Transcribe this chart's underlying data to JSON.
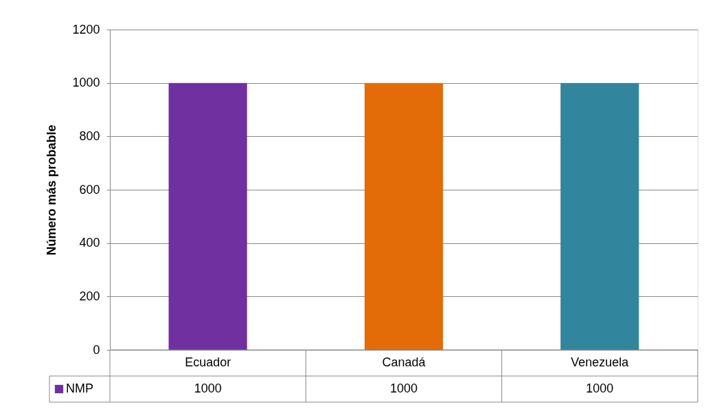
{
  "chart_data": {
    "type": "bar",
    "ylabel": "Número más probable",
    "categories": [
      "Ecuador",
      "Canadá",
      "Venezuela"
    ],
    "series": [
      {
        "name": "NMP",
        "values": [
          1000,
          1000,
          1000
        ]
      }
    ],
    "colors": [
      "#7030a0",
      "#e36c09",
      "#31859c"
    ],
    "ylim": [
      0,
      1200
    ],
    "yticks": [
      0,
      200,
      400,
      600,
      800,
      1000,
      1200
    ],
    "grid": "y",
    "legend": "bottom",
    "data_labels": true
  }
}
